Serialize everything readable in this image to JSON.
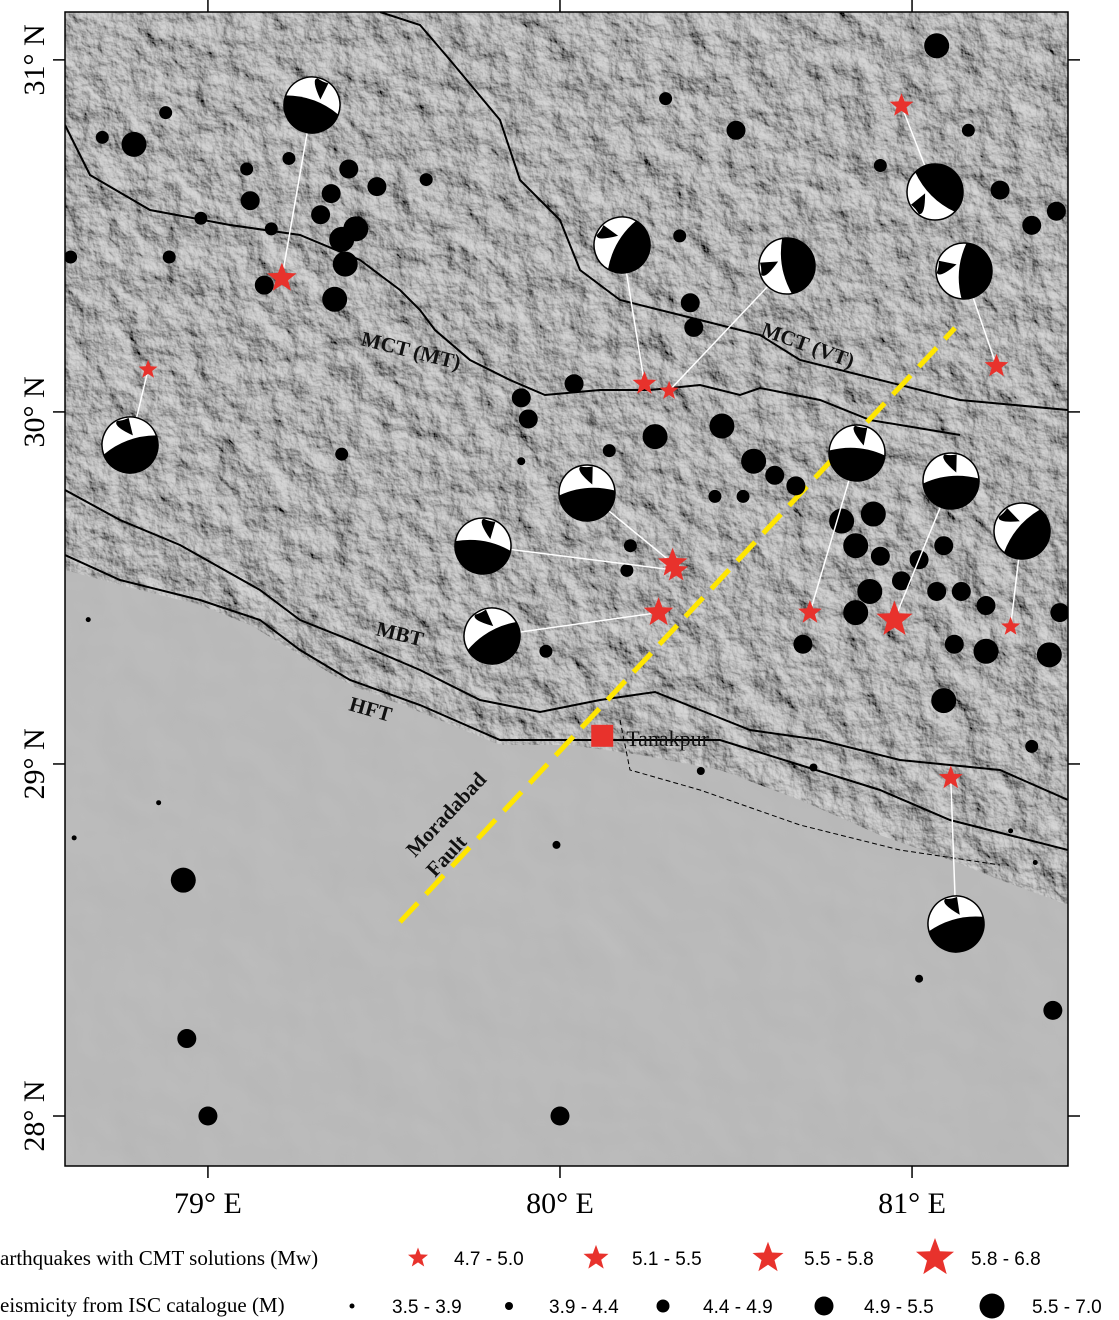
{
  "map": {
    "xlim": [
      78.594,
      81.443
    ],
    "ylim": [
      27.858,
      31.136
    ],
    "xticks": [
      {
        "value": 79,
        "label": "79° E"
      },
      {
        "value": 80,
        "label": "80° E"
      },
      {
        "value": 81,
        "label": "81° E"
      }
    ],
    "yticks": [
      {
        "value": 28,
        "label": "28° N"
      },
      {
        "value": 29,
        "label": "29° N"
      },
      {
        "value": 30,
        "label": "30° N"
      },
      {
        "value": 31,
        "label": "31° N"
      }
    ],
    "isc_events": {
      "lon": [
        81.07,
        80.3,
        80.5,
        78.79,
        78.7,
        78.88,
        79.11,
        79.23,
        79.4,
        79.48,
        79.62,
        79.35,
        79.32,
        79.38,
        79.39,
        79.36,
        79.42,
        79.16,
        79.12,
        78.89,
        79.18,
        79.89,
        79.91,
        80.04,
        80.27,
        80.46,
        80.14,
        80.38,
        80.37,
        80.34,
        80.91,
        81.16,
        81.41,
        81.34,
        81.25,
        80.55,
        80.61,
        80.52,
        80.44,
        80.67,
        80.8,
        80.84,
        80.89,
        80.91,
        81.02,
        81.09,
        81.14,
        81.07,
        80.97,
        80.88,
        80.84,
        81.21,
        81.39,
        81.42,
        81.09,
        81.12,
        81.21,
        80.69,
        80.2,
        80.19,
        79.96,
        81.34,
        81.4,
        78.93,
        78.94,
        79.0,
        80.0,
        79.99,
        80.4,
        81.02,
        78.66,
        78.86,
        78.62,
        78.61,
        79.38,
        78.98,
        79.89,
        80.72,
        81.35,
        81.28
      ],
      "lat": [
        31.04,
        30.89,
        30.8,
        30.76,
        30.78,
        30.85,
        30.69,
        30.72,
        30.69,
        30.64,
        30.66,
        30.62,
        30.56,
        30.49,
        30.42,
        30.32,
        30.52,
        30.36,
        30.6,
        30.44,
        30.52,
        30.04,
        29.98,
        30.08,
        29.93,
        29.96,
        29.89,
        30.24,
        30.31,
        30.5,
        30.7,
        30.8,
        30.57,
        30.53,
        30.63,
        29.86,
        29.82,
        29.76,
        29.76,
        29.79,
        29.69,
        29.62,
        29.71,
        29.59,
        29.58,
        29.62,
        29.49,
        29.49,
        29.52,
        29.49,
        29.43,
        29.32,
        29.31,
        29.43,
        29.18,
        29.34,
        29.45,
        29.34,
        29.62,
        29.55,
        29.32,
        29.05,
        28.3,
        28.67,
        28.22,
        28.0,
        28.0,
        28.77,
        28.98,
        28.39,
        29.41,
        28.89,
        28.79,
        30.44,
        29.88,
        30.55,
        29.86,
        28.99,
        28.72,
        28.81
      ],
      "mag": [
        5.8,
        4.6,
        5.2,
        5.8,
        4.6,
        4.6,
        4.6,
        4.6,
        5.2,
        5.2,
        4.6,
        5.2,
        5.2,
        5.8,
        5.8,
        5.8,
        5.8,
        5.2,
        5.2,
        4.6,
        4.6,
        5.2,
        5.2,
        5.2,
        5.8,
        5.8,
        4.6,
        5.2,
        5.2,
        4.6,
        4.6,
        4.6,
        5.2,
        5.2,
        5.2,
        5.8,
        5.2,
        4.6,
        4.6,
        5.2,
        5.8,
        5.8,
        5.8,
        5.2,
        5.2,
        5.2,
        5.2,
        5.2,
        5.2,
        5.8,
        5.8,
        5.8,
        5.8,
        5.2,
        5.8,
        5.2,
        5.2,
        5.2,
        4.6,
        4.6,
        4.6,
        4.6,
        5.2,
        5.8,
        5.2,
        5.2,
        5.2,
        4.1,
        4.1,
        4.1,
        3.7,
        3.7,
        3.7,
        4.6,
        4.6,
        4.6,
        4.1,
        4.1,
        3.7,
        3.7
      ]
    },
    "cmt_events": {
      "color": "#e8322c",
      "lon": [
        79.21,
        78.83,
        80.24,
        80.31,
        80.97,
        81.24,
        80.32,
        80.33,
        80.28,
        80.71,
        80.95,
        81.28,
        81.11
      ],
      "lat": [
        30.38,
        30.12,
        30.08,
        30.06,
        30.87,
        30.13,
        29.57,
        29.55,
        29.43,
        29.43,
        29.41,
        29.39,
        28.96
      ],
      "mw": [
        5.7,
        4.8,
        5.2,
        4.9,
        5.3,
        5.4,
        5.7,
        5.3,
        5.6,
        5.3,
        6.0,
        4.8,
        5.2
      ]
    },
    "town": {
      "name": "Tanakpur",
      "lon": 80.12,
      "lat": 29.08
    },
    "fault_labels": [
      "MCT (MT)",
      "MCT (VT)",
      "MBT",
      "HFT",
      "Moradabad",
      "Fault"
    ],
    "legend": {
      "cmt_title": "arthquakes with CMT solutions (Mw)",
      "cmt_classes": [
        "4.7 - 5.0",
        "5.1 - 5.5",
        "5.5 - 5.8",
        "5.8 - 6.8"
      ],
      "isc_title": "eismicity from ISC catalogue (M)",
      "isc_classes": [
        "3.5 - 3.9",
        "3.9 - 4.4",
        "4.4 - 4.9",
        "4.9 - 5.5",
        "5.5 - 7.0"
      ]
    }
  }
}
